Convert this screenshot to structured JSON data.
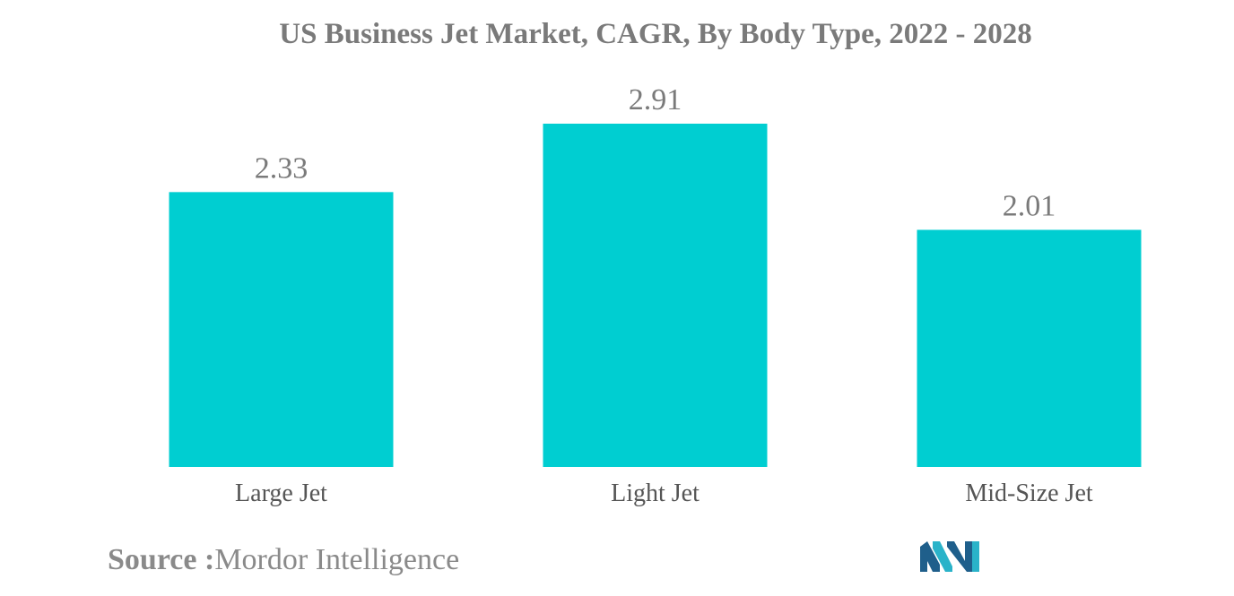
{
  "colors": {
    "bar": "#00ced1",
    "title": "#7a7a7a",
    "logo_dark": "#1f5f8b",
    "logo_light": "#2ab3c9"
  },
  "chart_data": {
    "type": "bar",
    "title": "US Business Jet Market, CAGR, By Body Type, 2022 - 2028",
    "categories": [
      "Large Jet",
      "Light Jet",
      "Mid-Size Jet"
    ],
    "values": [
      2.33,
      2.91,
      2.01
    ],
    "value_labels": [
      "2.33",
      "2.91",
      "2.01"
    ],
    "xlabel": "",
    "ylabel": "",
    "ylim": [
      0,
      2.91
    ],
    "grid": false,
    "legend": "none"
  },
  "source": {
    "label": "Source :",
    "text": "Mordor Intelligence"
  },
  "logo": {
    "icon": "mordor-intelligence-logo-icon"
  }
}
